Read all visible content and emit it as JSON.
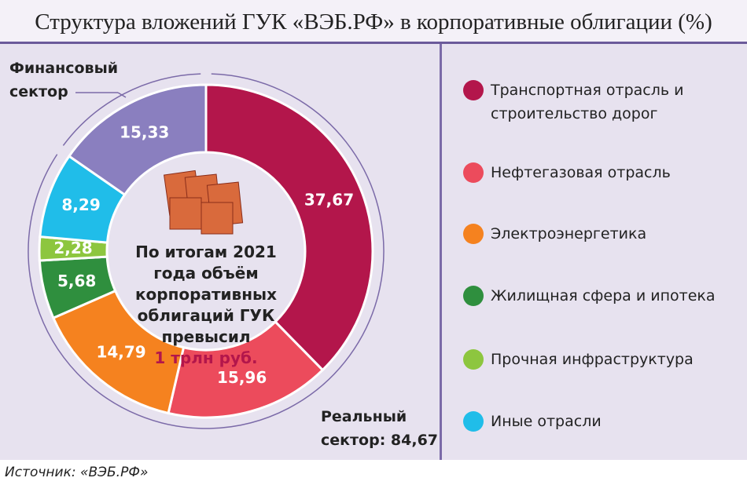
{
  "chart_data": {
    "type": "pie",
    "donut": true,
    "title": "Структура вложений ГУК «ВЭБ.РФ» в корпоративные облигации (%)",
    "categories": [
      "Транспортная отрасль и строительство дорог",
      "Нефтегазовая отрасль",
      "Электроэнергетика",
      "Жилищная сфера и ипотека",
      "Прочная инфраструктура",
      "Иные отрасли",
      "Финансовый сектор"
    ],
    "values": [
      37.67,
      15.96,
      14.79,
      5.68,
      2.28,
      8.29,
      15.33
    ],
    "value_labels": [
      "37,67",
      "15,96",
      "14,79",
      "5,68",
      "2,28",
      "8,29",
      "15,33"
    ],
    "colors": [
      "#b3164b",
      "#ec4b5c",
      "#f5821f",
      "#2f8f3e",
      "#8dc63f",
      "#20bde9",
      "#8a7fbf"
    ],
    "center_text": "По итогам 2021 года объём корпоративных облигаций ГУК превысил",
    "center_highlight": "1 трлн руб.",
    "annotations": [
      "Реальный сектор: 84,67"
    ],
    "legend_position": "right"
  },
  "source": "Источник: «ВЭБ.РФ»"
}
